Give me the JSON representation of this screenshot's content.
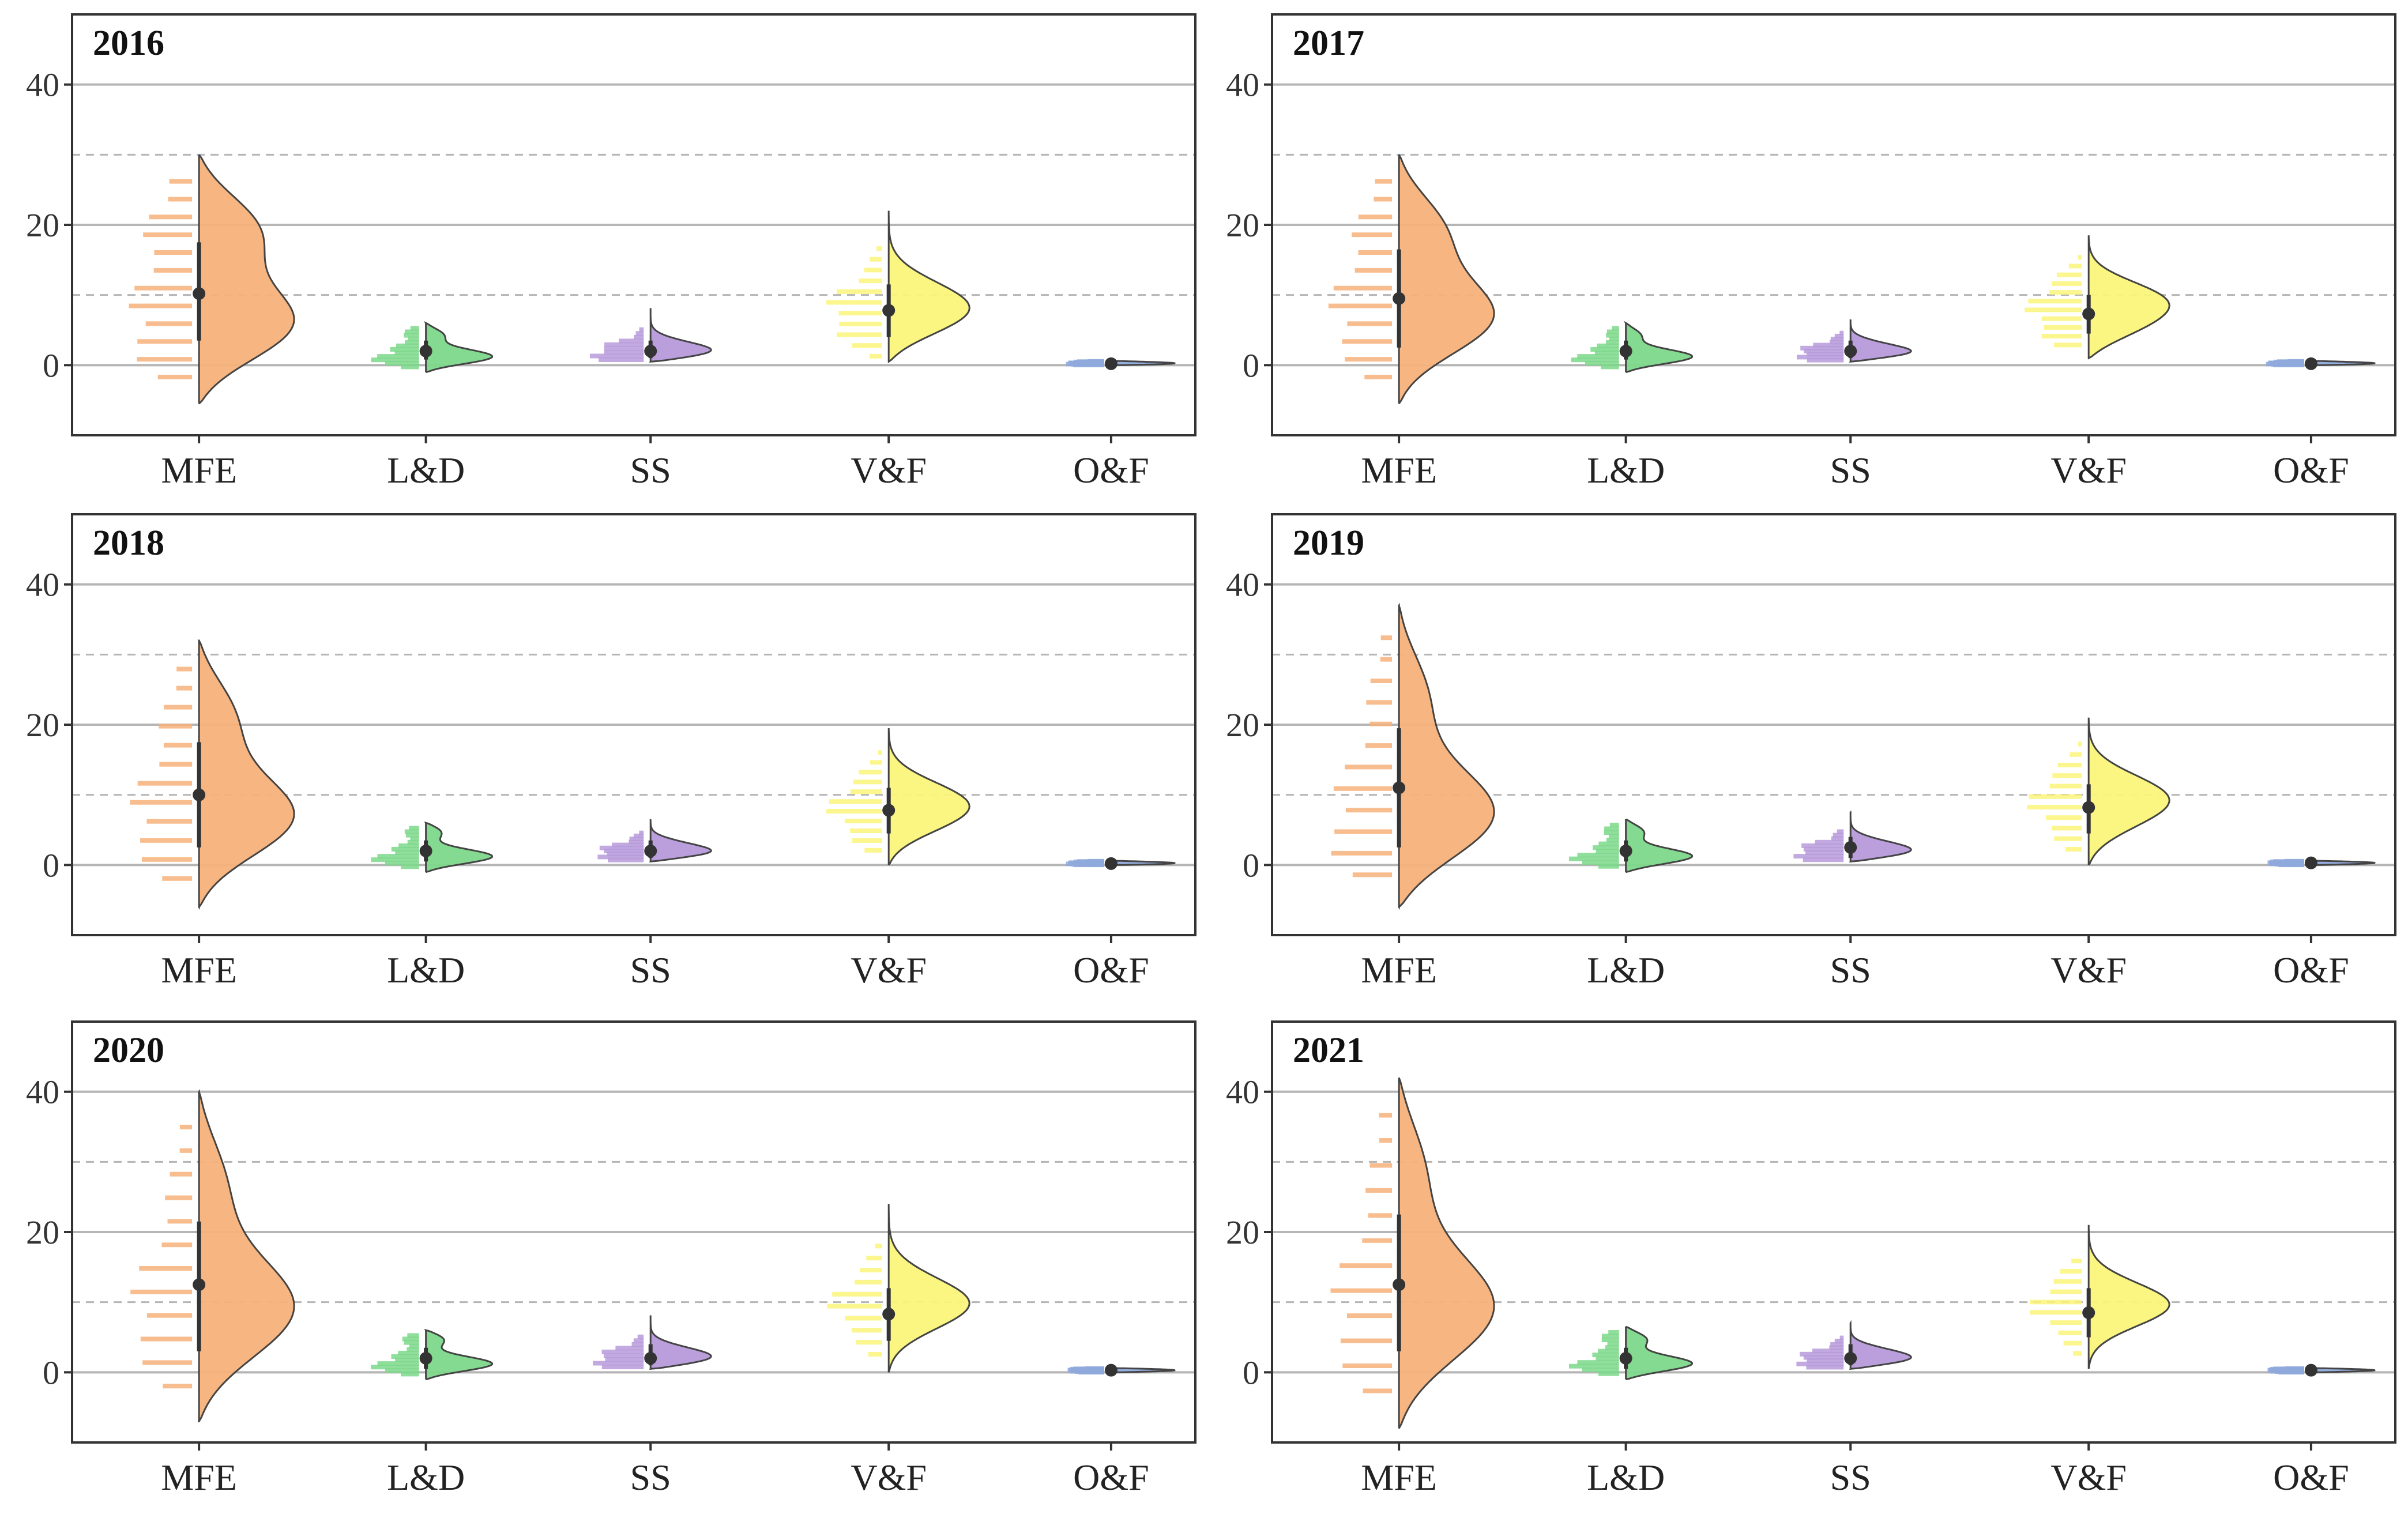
{
  "figure": {
    "colors": {
      "MFE": "#F7B27A",
      "L&D": "#7DD88A",
      "SS": "#B79ADB",
      "V&F": "#FAF57A",
      "O&F": "#8FA9DD",
      "whisker": "#333333",
      "grid": "#B5B5B5"
    }
  },
  "chart_data": [
    {
      "type": "raincloud",
      "title": "2016",
      "categories": [
        "MFE",
        "L&D",
        "SS",
        "V&F",
        "O&F"
      ],
      "ylim": [
        -10,
        50
      ],
      "yticks": [
        0,
        20,
        40
      ],
      "grid": "solid at 0/20/40, dashed at 10/30",
      "series": [
        {
          "name": "MFE",
          "mean": 10.2,
          "q1": 3.5,
          "q3": 17.5,
          "min": -5.5,
          "max": 30,
          "modes": [
            {
              "value": 5,
              "weight": 1.0
            },
            {
              "value": 20,
              "weight": 0.65
            }
          ]
        },
        {
          "name": "L&D",
          "mean": 2.0,
          "q1": 0.8,
          "q3": 3.5,
          "min": -1,
          "max": 6,
          "modes": [
            {
              "value": 1.0,
              "weight": 1.0
            },
            {
              "value": 4.5,
              "weight": 0.3
            }
          ]
        },
        {
          "name": "SS",
          "mean": 2.0,
          "q1": 1.0,
          "q3": 3.5,
          "min": 0.5,
          "max": 8,
          "modes": [
            {
              "value": 1.5,
              "weight": 1.0
            },
            {
              "value": 3.0,
              "weight": 0.2
            }
          ]
        },
        {
          "name": "V&F",
          "mean": 7.8,
          "q1": 4.0,
          "q3": 11.5,
          "min": 0.5,
          "max": 22,
          "modes": [
            {
              "value": 6,
              "weight": 1.0
            },
            {
              "value": 9.5,
              "weight": 0.8
            }
          ]
        },
        {
          "name": "O&F",
          "mean": 0.2,
          "q1": 0.0,
          "q3": 0.4,
          "min": 0,
          "max": 0.6,
          "modes": [
            {
              "value": 0.2,
              "weight": 1.0
            }
          ]
        }
      ]
    },
    {
      "type": "raincloud",
      "title": "2017",
      "categories": [
        "MFE",
        "L&D",
        "SS",
        "V&F",
        "O&F"
      ],
      "ylim": [
        -10,
        50
      ],
      "yticks": [
        0,
        20,
        40
      ],
      "grid": "solid at 0/20/40, dashed at 10/30",
      "series": [
        {
          "name": "MFE",
          "mean": 9.5,
          "q1": 2.5,
          "q3": 16.5,
          "min": -5.5,
          "max": 30,
          "modes": [
            {
              "value": 6,
              "weight": 1.0
            },
            {
              "value": 20,
              "weight": 0.5
            }
          ]
        },
        {
          "name": "L&D",
          "mean": 2.0,
          "q1": 0.8,
          "q3": 3.5,
          "min": -1,
          "max": 6,
          "modes": [
            {
              "value": 1.0,
              "weight": 1.0
            },
            {
              "value": 4.5,
              "weight": 0.25
            }
          ]
        },
        {
          "name": "SS",
          "mean": 2.0,
          "q1": 1.0,
          "q3": 3.5,
          "min": 0.5,
          "max": 6.5,
          "modes": [
            {
              "value": 1.5,
              "weight": 1.0
            },
            {
              "value": 3.0,
              "weight": 0.25
            }
          ]
        },
        {
          "name": "V&F",
          "mean": 7.3,
          "q1": 4.5,
          "q3": 10.0,
          "min": 1,
          "max": 18.5,
          "modes": [
            {
              "value": 5,
              "weight": 0.75
            },
            {
              "value": 9.5,
              "weight": 1.0
            }
          ]
        },
        {
          "name": "O&F",
          "mean": 0.2,
          "q1": 0.0,
          "q3": 0.4,
          "min": 0,
          "max": 0.6,
          "modes": [
            {
              "value": 0.2,
              "weight": 1.0
            }
          ]
        }
      ]
    },
    {
      "type": "raincloud",
      "title": "2018",
      "categories": [
        "MFE",
        "L&D",
        "SS",
        "V&F",
        "O&F"
      ],
      "ylim": [
        -10,
        50
      ],
      "yticks": [
        0,
        20,
        40
      ],
      "grid": "solid at 0/20/40, dashed at 10/30",
      "series": [
        {
          "name": "MFE",
          "mean": 10.0,
          "q1": 2.5,
          "q3": 17.5,
          "min": -6,
          "max": 32,
          "modes": [
            {
              "value": 6,
              "weight": 1.0
            },
            {
              "value": 22,
              "weight": 0.4
            }
          ]
        },
        {
          "name": "L&D",
          "mean": 2.0,
          "q1": 0.5,
          "q3": 3.5,
          "min": -1,
          "max": 6,
          "modes": [
            {
              "value": 1.0,
              "weight": 1.0
            },
            {
              "value": 5,
              "weight": 0.3
            }
          ]
        },
        {
          "name": "SS",
          "mean": 2.0,
          "q1": 1.0,
          "q3": 3.5,
          "min": 0.5,
          "max": 6.5,
          "modes": [
            {
              "value": 1.5,
              "weight": 1.0
            },
            {
              "value": 3.0,
              "weight": 0.3
            }
          ]
        },
        {
          "name": "V&F",
          "mean": 7.8,
          "q1": 4.5,
          "q3": 11.0,
          "min": 0,
          "max": 19.5,
          "modes": [
            {
              "value": 6,
              "weight": 0.8
            },
            {
              "value": 9.5,
              "weight": 1.0
            }
          ]
        },
        {
          "name": "O&F",
          "mean": 0.2,
          "q1": 0.0,
          "q3": 0.4,
          "min": 0,
          "max": 0.6,
          "modes": [
            {
              "value": 0.2,
              "weight": 1.0
            }
          ]
        }
      ]
    },
    {
      "type": "raincloud",
      "title": "2019",
      "categories": [
        "MFE",
        "L&D",
        "SS",
        "V&F",
        "O&F"
      ],
      "ylim": [
        -10,
        50
      ],
      "yticks": [
        0,
        20,
        40
      ],
      "grid": "solid at 0/20/40, dashed at 10/30",
      "series": [
        {
          "name": "MFE",
          "mean": 11.0,
          "q1": 2.5,
          "q3": 19.5,
          "min": -6,
          "max": 37,
          "modes": [
            {
              "value": 6,
              "weight": 1.0
            },
            {
              "value": 25,
              "weight": 0.3
            }
          ]
        },
        {
          "name": "L&D",
          "mean": 2.0,
          "q1": 0.5,
          "q3": 3.5,
          "min": -1,
          "max": 6.5,
          "modes": [
            {
              "value": 1.0,
              "weight": 1.0
            },
            {
              "value": 5,
              "weight": 0.3
            }
          ]
        },
        {
          "name": "SS",
          "mean": 2.5,
          "q1": 1.0,
          "q3": 4.0,
          "min": 0.5,
          "max": 7.5,
          "modes": [
            {
              "value": 1.5,
              "weight": 1.0
            },
            {
              "value": 3.0,
              "weight": 0.3
            }
          ]
        },
        {
          "name": "V&F",
          "mean": 8.2,
          "q1": 4.5,
          "q3": 11.5,
          "min": 0,
          "max": 21,
          "modes": [
            {
              "value": 10,
              "weight": 1.0
            },
            {
              "value": 6,
              "weight": 0.5
            }
          ]
        },
        {
          "name": "O&F",
          "mean": 0.3,
          "q1": 0.0,
          "q3": 0.5,
          "min": 0,
          "max": 0.6,
          "modes": [
            {
              "value": 0.3,
              "weight": 1.0
            }
          ]
        }
      ]
    },
    {
      "type": "raincloud",
      "title": "2020",
      "categories": [
        "MFE",
        "L&D",
        "SS",
        "V&F",
        "O&F"
      ],
      "ylim": [
        -10,
        50
      ],
      "yticks": [
        0,
        20,
        40
      ],
      "grid": "solid at 0/20/40, dashed at 10/30",
      "series": [
        {
          "name": "MFE",
          "mean": 12.5,
          "q1": 3.0,
          "q3": 21.5,
          "min": -7,
          "max": 40,
          "modes": [
            {
              "value": 8,
              "weight": 1.0
            },
            {
              "value": 28,
              "weight": 0.3
            }
          ]
        },
        {
          "name": "L&D",
          "mean": 2.0,
          "q1": 0.5,
          "q3": 3.5,
          "min": -1,
          "max": 6,
          "modes": [
            {
              "value": 1.0,
              "weight": 1.0
            },
            {
              "value": 5,
              "weight": 0.35
            }
          ]
        },
        {
          "name": "SS",
          "mean": 2.0,
          "q1": 1.0,
          "q3": 4.0,
          "min": 0.5,
          "max": 8,
          "modes": [
            {
              "value": 1.5,
              "weight": 1.0
            },
            {
              "value": 3.0,
              "weight": 0.35
            }
          ]
        },
        {
          "name": "V&F",
          "mean": 8.3,
          "q1": 4.5,
          "q3": 12.0,
          "min": 0,
          "max": 24,
          "modes": [
            {
              "value": 9.5,
              "weight": 1.0
            }
          ]
        },
        {
          "name": "O&F",
          "mean": 0.3,
          "q1": 0.0,
          "q3": 0.5,
          "min": 0,
          "max": 0.6,
          "modes": [
            {
              "value": 0.3,
              "weight": 1.0
            }
          ]
        }
      ]
    },
    {
      "type": "raincloud",
      "title": "2021",
      "categories": [
        "MFE",
        "L&D",
        "SS",
        "V&F",
        "O&F"
      ],
      "ylim": [
        -10,
        50
      ],
      "yticks": [
        0,
        20,
        40
      ],
      "grid": "solid at 0/20/40, dashed at 10/30",
      "series": [
        {
          "name": "MFE",
          "mean": 12.5,
          "q1": 3.0,
          "q3": 22.5,
          "min": -8,
          "max": 42,
          "modes": [
            {
              "value": 8,
              "weight": 1.0
            },
            {
              "value": 30,
              "weight": 0.3
            }
          ]
        },
        {
          "name": "L&D",
          "mean": 2.0,
          "q1": 0.5,
          "q3": 3.5,
          "min": -1,
          "max": 6.5,
          "modes": [
            {
              "value": 1.0,
              "weight": 1.0
            },
            {
              "value": 5,
              "weight": 0.35
            }
          ]
        },
        {
          "name": "SS",
          "mean": 2.0,
          "q1": 1.0,
          "q3": 4.0,
          "min": 0.5,
          "max": 7,
          "modes": [
            {
              "value": 1.5,
              "weight": 1.0
            },
            {
              "value": 3.0,
              "weight": 0.35
            }
          ]
        },
        {
          "name": "V&F",
          "mean": 8.5,
          "q1": 5.0,
          "q3": 12.0,
          "min": 0.5,
          "max": 21,
          "modes": [
            {
              "value": 9.5,
              "weight": 1.0
            }
          ]
        },
        {
          "name": "O&F",
          "mean": 0.3,
          "q1": 0.0,
          "q3": 0.5,
          "min": 0,
          "max": 0.6,
          "modes": [
            {
              "value": 0.3,
              "weight": 1.0
            }
          ]
        }
      ]
    }
  ]
}
